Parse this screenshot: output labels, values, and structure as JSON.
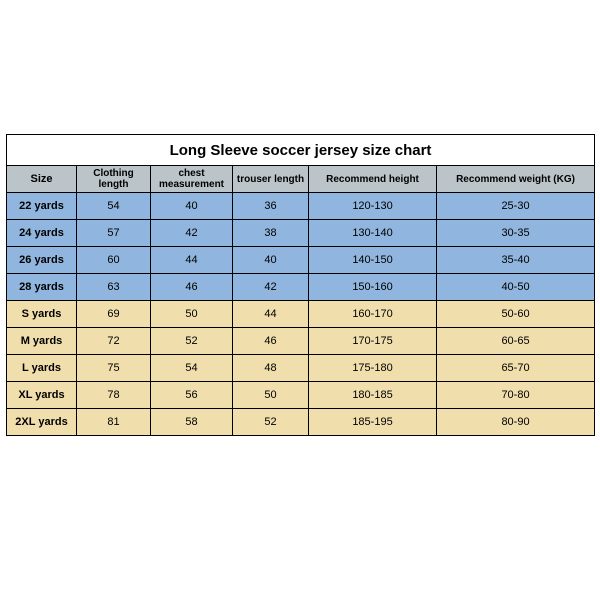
{
  "table": {
    "type": "table",
    "title": "Long Sleeve soccer jersey size chart",
    "title_fontsize": 15,
    "header_bg": "#bbc5c9",
    "row_colors": {
      "blue": "#90b5de",
      "yellow": "#f0deac"
    },
    "border_color": "#000000",
    "columns": [
      {
        "key": "size",
        "label": "Size",
        "width": 70
      },
      {
        "key": "clothing_length",
        "label": "Clothing length",
        "width": 74
      },
      {
        "key": "chest",
        "label": "chest measurement",
        "width": 82
      },
      {
        "key": "trouser_length",
        "label": "trouser length",
        "width": 76
      },
      {
        "key": "rec_height",
        "label": "Recommend height",
        "width": 128
      },
      {
        "key": "rec_weight",
        "label": "Recommend weight (KG)",
        "width": 158
      }
    ],
    "rows": [
      {
        "group": "blue",
        "size": "22 yards",
        "clothing_length": "54",
        "chest": "40",
        "trouser_length": "36",
        "rec_height": "120-130",
        "rec_weight": "25-30"
      },
      {
        "group": "blue",
        "size": "24 yards",
        "clothing_length": "57",
        "chest": "42",
        "trouser_length": "38",
        "rec_height": "130-140",
        "rec_weight": "30-35"
      },
      {
        "group": "blue",
        "size": "26 yards",
        "clothing_length": "60",
        "chest": "44",
        "trouser_length": "40",
        "rec_height": "140-150",
        "rec_weight": "35-40"
      },
      {
        "group": "blue",
        "size": "28 yards",
        "clothing_length": "63",
        "chest": "46",
        "trouser_length": "42",
        "rec_height": "150-160",
        "rec_weight": "40-50"
      },
      {
        "group": "yellow",
        "size": "S yards",
        "clothing_length": "69",
        "chest": "50",
        "trouser_length": "44",
        "rec_height": "160-170",
        "rec_weight": "50-60"
      },
      {
        "group": "yellow",
        "size": "M yards",
        "clothing_length": "72",
        "chest": "52",
        "trouser_length": "46",
        "rec_height": "170-175",
        "rec_weight": "60-65"
      },
      {
        "group": "yellow",
        "size": "L yards",
        "clothing_length": "75",
        "chest": "54",
        "trouser_length": "48",
        "rec_height": "175-180",
        "rec_weight": "65-70"
      },
      {
        "group": "yellow",
        "size": "XL yards",
        "clothing_length": "78",
        "chest": "56",
        "trouser_length": "50",
        "rec_height": "180-185",
        "rec_weight": "70-80"
      },
      {
        "group": "yellow",
        "size": "2XL yards",
        "clothing_length": "81",
        "chest": "58",
        "trouser_length": "52",
        "rec_height": "185-195",
        "rec_weight": "80-90"
      }
    ]
  }
}
